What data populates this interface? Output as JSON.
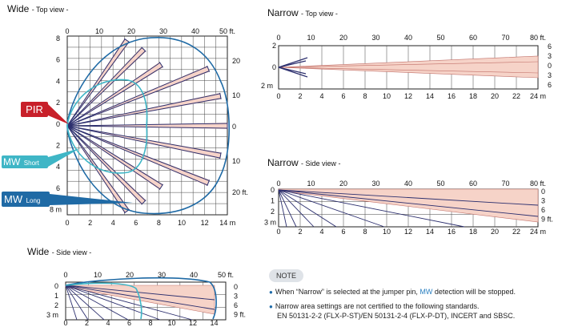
{
  "titles": {
    "wide_top": {
      "main": "Wide",
      "sub": "- Top view -"
    },
    "narrow_top": {
      "main": "Narrow",
      "sub": "- Top view -"
    },
    "narrow_side": {
      "main": "Narrow",
      "sub": "- Side view -"
    },
    "wide_side": {
      "main": "Wide",
      "sub": "- Side view -"
    }
  },
  "callouts": {
    "pir": "PIR",
    "mw_short": {
      "main": "MW",
      "sub": "Short"
    },
    "mw_long": {
      "main": "MW",
      "sub": "Long"
    }
  },
  "colors": {
    "pir": "#c8202a",
    "mw_short": "#3fb6c6",
    "mw_long": "#1f6aa5",
    "beam": "#2c2f6e",
    "fill": "#f6d3c8"
  },
  "wide_top": {
    "ft_top": [
      "0",
      "10",
      "20",
      "30",
      "40",
      "50 ft."
    ],
    "ft_right": [
      "20",
      "10",
      "0",
      "10",
      "20 ft."
    ],
    "m_left": [
      "8",
      "6",
      "4",
      "2",
      "0",
      "2",
      "4",
      "6",
      "8 m"
    ],
    "m_bottom": [
      "0",
      "2",
      "4",
      "6",
      "8",
      "10",
      "12",
      "14 m"
    ]
  },
  "narrow_top": {
    "ft_top": [
      "0",
      "10",
      "20",
      "30",
      "40",
      "50",
      "60",
      "70",
      "80 ft."
    ],
    "ft_right": [
      "6",
      "3",
      "0",
      "3",
      "6"
    ],
    "m_left": [
      "2",
      "0",
      "2 m"
    ],
    "m_bottom": [
      "0",
      "2",
      "4",
      "6",
      "8",
      "10",
      "12",
      "14",
      "16",
      "18",
      "20",
      "22",
      "24 m"
    ]
  },
  "narrow_side": {
    "ft_top": [
      "0",
      "10",
      "20",
      "30",
      "40",
      "50",
      "60",
      "70",
      "80 ft."
    ],
    "ft_right": [
      "0",
      "3",
      "6",
      "9 ft."
    ],
    "m_left": [
      "0",
      "1",
      "2",
      "3 m"
    ],
    "m_bottom": [
      "0",
      "2",
      "4",
      "6",
      "8",
      "10",
      "12",
      "14",
      "16",
      "18",
      "20",
      "22",
      "24 m"
    ]
  },
  "wide_side": {
    "ft_top": [
      "0",
      "10",
      "20",
      "30",
      "40",
      "50 ft."
    ],
    "ft_right": [
      "0",
      "3",
      "6",
      "9 ft."
    ],
    "m_left": [
      "0",
      "1",
      "2",
      "3 m"
    ],
    "m_bottom": [
      "0",
      "2",
      "4",
      "6",
      "8",
      "10",
      "12",
      "14"
    ]
  },
  "note": {
    "badge": "NOTE",
    "line1_pre": "When “Narrow” is selected at the jumper pin, ",
    "line1_mw": "MW",
    "line1_post": " detection will be stopped.",
    "line2": "Narrow area settings are not certified to the following standards.",
    "line3": "EN 50131-2-2 (FLX-P-ST)/EN 50131-2-4 (FLX-P-DT), INCERT and SBSC."
  }
}
